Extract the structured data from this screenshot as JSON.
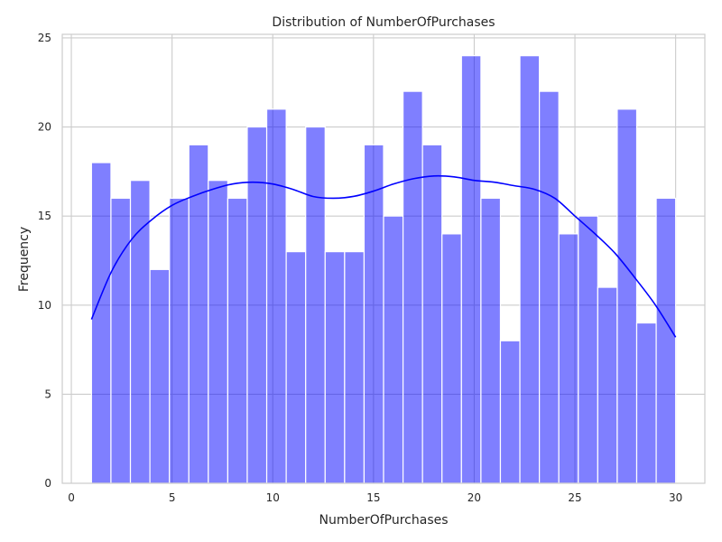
{
  "chart_data": {
    "type": "bar",
    "title": "Distribution of NumberOfPurchases",
    "xlabel": "NumberOfPurchases",
    "ylabel": "Frequency",
    "xlim": [
      -0.45,
      31.45
    ],
    "ylim": [
      0,
      25.2
    ],
    "xticks": [
      0,
      5,
      10,
      15,
      20,
      25,
      30
    ],
    "yticks": [
      0,
      5,
      10,
      15,
      20,
      25
    ],
    "grid": true,
    "bar_color": "#0000ff",
    "bar_opacity": 0.5,
    "kde_color": "#0000ff",
    "bins": {
      "x_start": 1,
      "bin_width": 0.9667,
      "counts": [
        18,
        16,
        17,
        12,
        16,
        19,
        17,
        16,
        20,
        21,
        13,
        20,
        13,
        13,
        19,
        15,
        22,
        19,
        14,
        24,
        16,
        8,
        24,
        22,
        14,
        15,
        11,
        21,
        9,
        16
      ]
    },
    "kde": {
      "x": [
        1,
        2,
        3,
        4,
        5,
        6,
        7,
        8,
        9,
        10,
        11,
        12,
        13,
        14,
        15,
        16,
        17,
        18,
        19,
        20,
        21,
        22,
        23,
        24,
        25,
        26,
        27,
        28,
        29,
        30
      ],
      "y": [
        9.2,
        11.9,
        13.7,
        14.8,
        15.6,
        16.1,
        16.5,
        16.8,
        16.9,
        16.8,
        16.5,
        16.1,
        16.0,
        16.1,
        16.4,
        16.8,
        17.1,
        17.25,
        17.2,
        17.0,
        16.9,
        16.7,
        16.5,
        16.0,
        15.0,
        14.0,
        12.9,
        11.5,
        10.0,
        8.2
      ]
    }
  }
}
